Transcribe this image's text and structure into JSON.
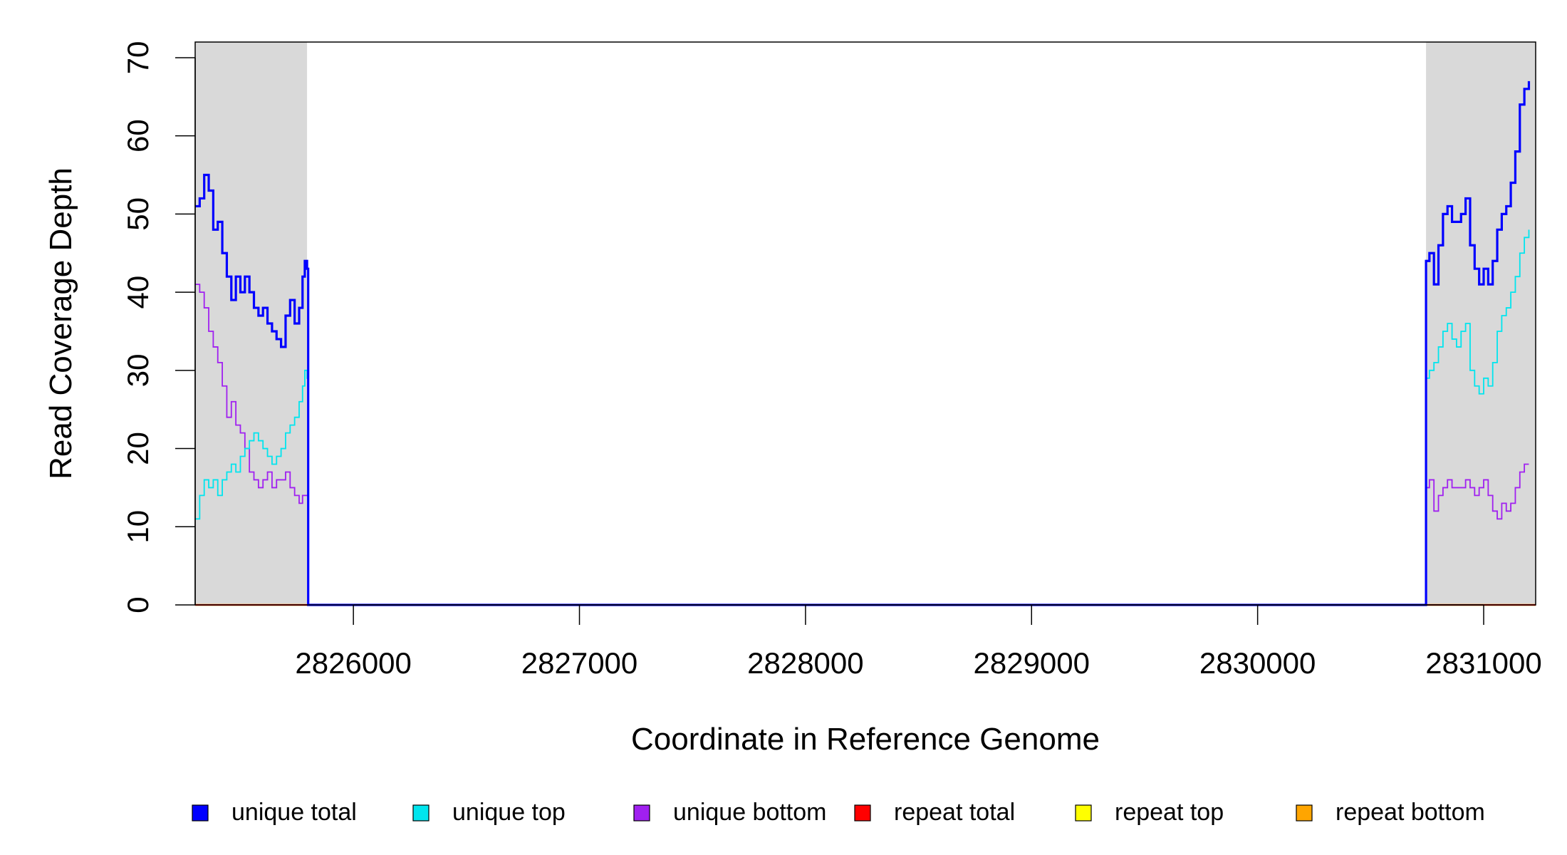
{
  "chart_data": {
    "type": "line",
    "title": "",
    "xlabel": "Coordinate in Reference Genome",
    "ylabel": "Read Coverage Depth",
    "xlim": [
      2825300,
      2831230
    ],
    "ylim": [
      0,
      72
    ],
    "x_ticks": [
      2826000,
      2827000,
      2828000,
      2829000,
      2830000,
      2831000
    ],
    "y_ticks": [
      0,
      10,
      20,
      30,
      40,
      50,
      60,
      70
    ],
    "x_tick_labels": [
      "2826000",
      "2827000",
      "2828000",
      "2829000",
      "2830000",
      "2831000"
    ],
    "y_tick_labels": [
      "0",
      "10",
      "20",
      "30",
      "40",
      "50",
      "60",
      "70"
    ],
    "shaded_regions": [
      [
        2825300,
        2825795
      ],
      [
        2830745,
        2831230
      ]
    ],
    "grid": false,
    "legend_position": "bottom",
    "series": [
      {
        "name": "unique total",
        "color": "#0000ff",
        "points": [
          [
            2825300,
            51
          ],
          [
            2825320,
            52
          ],
          [
            2825340,
            55
          ],
          [
            2825360,
            53
          ],
          [
            2825380,
            48
          ],
          [
            2825400,
            49
          ],
          [
            2825420,
            45
          ],
          [
            2825440,
            42
          ],
          [
            2825460,
            39
          ],
          [
            2825480,
            42
          ],
          [
            2825500,
            40
          ],
          [
            2825520,
            42
          ],
          [
            2825540,
            40
          ],
          [
            2825560,
            38
          ],
          [
            2825580,
            37
          ],
          [
            2825600,
            38
          ],
          [
            2825620,
            36
          ],
          [
            2825640,
            35
          ],
          [
            2825660,
            34
          ],
          [
            2825680,
            33
          ],
          [
            2825700,
            37
          ],
          [
            2825720,
            39
          ],
          [
            2825740,
            36
          ],
          [
            2825760,
            38
          ],
          [
            2825775,
            42
          ],
          [
            2825785,
            44
          ],
          [
            2825795,
            43
          ],
          [
            2825800,
            0
          ],
          [
            2830740,
            0
          ],
          [
            2830745,
            44
          ],
          [
            2830760,
            45
          ],
          [
            2830780,
            41
          ],
          [
            2830800,
            46
          ],
          [
            2830820,
            50
          ],
          [
            2830840,
            51
          ],
          [
            2830860,
            49
          ],
          [
            2830880,
            49
          ],
          [
            2830900,
            50
          ],
          [
            2830920,
            52
          ],
          [
            2830940,
            46
          ],
          [
            2830960,
            43
          ],
          [
            2830980,
            41
          ],
          [
            2831000,
            43
          ],
          [
            2831020,
            41
          ],
          [
            2831040,
            44
          ],
          [
            2831060,
            48
          ],
          [
            2831080,
            50
          ],
          [
            2831100,
            51
          ],
          [
            2831120,
            54
          ],
          [
            2831140,
            58
          ],
          [
            2831160,
            64
          ],
          [
            2831180,
            66
          ],
          [
            2831200,
            67
          ]
        ]
      },
      {
        "name": "unique top",
        "color": "#00e5ee",
        "points": [
          [
            2825300,
            11
          ],
          [
            2825320,
            14
          ],
          [
            2825340,
            16
          ],
          [
            2825360,
            15
          ],
          [
            2825380,
            16
          ],
          [
            2825400,
            14
          ],
          [
            2825420,
            16
          ],
          [
            2825440,
            17
          ],
          [
            2825460,
            18
          ],
          [
            2825480,
            17
          ],
          [
            2825500,
            19
          ],
          [
            2825520,
            20
          ],
          [
            2825540,
            21
          ],
          [
            2825560,
            22
          ],
          [
            2825580,
            21
          ],
          [
            2825600,
            20
          ],
          [
            2825620,
            19
          ],
          [
            2825640,
            18
          ],
          [
            2825660,
            19
          ],
          [
            2825680,
            20
          ],
          [
            2825700,
            22
          ],
          [
            2825720,
            23
          ],
          [
            2825740,
            24
          ],
          [
            2825760,
            26
          ],
          [
            2825775,
            28
          ],
          [
            2825785,
            30
          ],
          [
            2825795,
            29
          ],
          [
            2825800,
            0
          ],
          [
            2830740,
            0
          ],
          [
            2830745,
            29
          ],
          [
            2830760,
            30
          ],
          [
            2830780,
            31
          ],
          [
            2830800,
            33
          ],
          [
            2830820,
            35
          ],
          [
            2830840,
            36
          ],
          [
            2830860,
            34
          ],
          [
            2830880,
            33
          ],
          [
            2830900,
            35
          ],
          [
            2830920,
            36
          ],
          [
            2830940,
            30
          ],
          [
            2830960,
            28
          ],
          [
            2830980,
            27
          ],
          [
            2831000,
            29
          ],
          [
            2831020,
            28
          ],
          [
            2831040,
            31
          ],
          [
            2831060,
            35
          ],
          [
            2831080,
            37
          ],
          [
            2831100,
            38
          ],
          [
            2831120,
            40
          ],
          [
            2831140,
            42
          ],
          [
            2831160,
            45
          ],
          [
            2831180,
            47
          ],
          [
            2831200,
            48
          ]
        ]
      },
      {
        "name": "unique bottom",
        "color": "#a020f0",
        "points": [
          [
            2825300,
            41
          ],
          [
            2825320,
            40
          ],
          [
            2825340,
            38
          ],
          [
            2825360,
            35
          ],
          [
            2825380,
            33
          ],
          [
            2825400,
            31
          ],
          [
            2825420,
            28
          ],
          [
            2825440,
            24
          ],
          [
            2825460,
            26
          ],
          [
            2825480,
            23
          ],
          [
            2825500,
            22
          ],
          [
            2825520,
            20
          ],
          [
            2825540,
            17
          ],
          [
            2825560,
            16
          ],
          [
            2825580,
            15
          ],
          [
            2825600,
            16
          ],
          [
            2825620,
            17
          ],
          [
            2825640,
            15
          ],
          [
            2825660,
            16
          ],
          [
            2825680,
            16
          ],
          [
            2825700,
            17
          ],
          [
            2825720,
            15
          ],
          [
            2825740,
            14
          ],
          [
            2825760,
            13
          ],
          [
            2825775,
            14
          ],
          [
            2825785,
            14
          ],
          [
            2825795,
            14
          ],
          [
            2825800,
            0
          ],
          [
            2830740,
            0
          ],
          [
            2830745,
            15
          ],
          [
            2830760,
            16
          ],
          [
            2830780,
            12
          ],
          [
            2830800,
            14
          ],
          [
            2830820,
            15
          ],
          [
            2830840,
            16
          ],
          [
            2830860,
            15
          ],
          [
            2830880,
            15
          ],
          [
            2830900,
            15
          ],
          [
            2830920,
            16
          ],
          [
            2830940,
            15
          ],
          [
            2830960,
            14
          ],
          [
            2830980,
            15
          ],
          [
            2831000,
            16
          ],
          [
            2831020,
            14
          ],
          [
            2831040,
            12
          ],
          [
            2831060,
            11
          ],
          [
            2831080,
            13
          ],
          [
            2831100,
            12
          ],
          [
            2831120,
            13
          ],
          [
            2831140,
            15
          ],
          [
            2831160,
            17
          ],
          [
            2831180,
            18
          ],
          [
            2831200,
            18
          ]
        ]
      },
      {
        "name": "repeat total",
        "color": "#ff0000",
        "points": [
          [
            2825300,
            0
          ],
          [
            2831230,
            0
          ]
        ]
      },
      {
        "name": "repeat top",
        "color": "#ffff00",
        "points": [
          [
            2825300,
            0
          ],
          [
            2831230,
            0
          ]
        ]
      },
      {
        "name": "repeat bottom",
        "color": "#ffa500",
        "points": [
          [
            2825300,
            0
          ],
          [
            2831230,
            0
          ]
        ]
      }
    ]
  }
}
